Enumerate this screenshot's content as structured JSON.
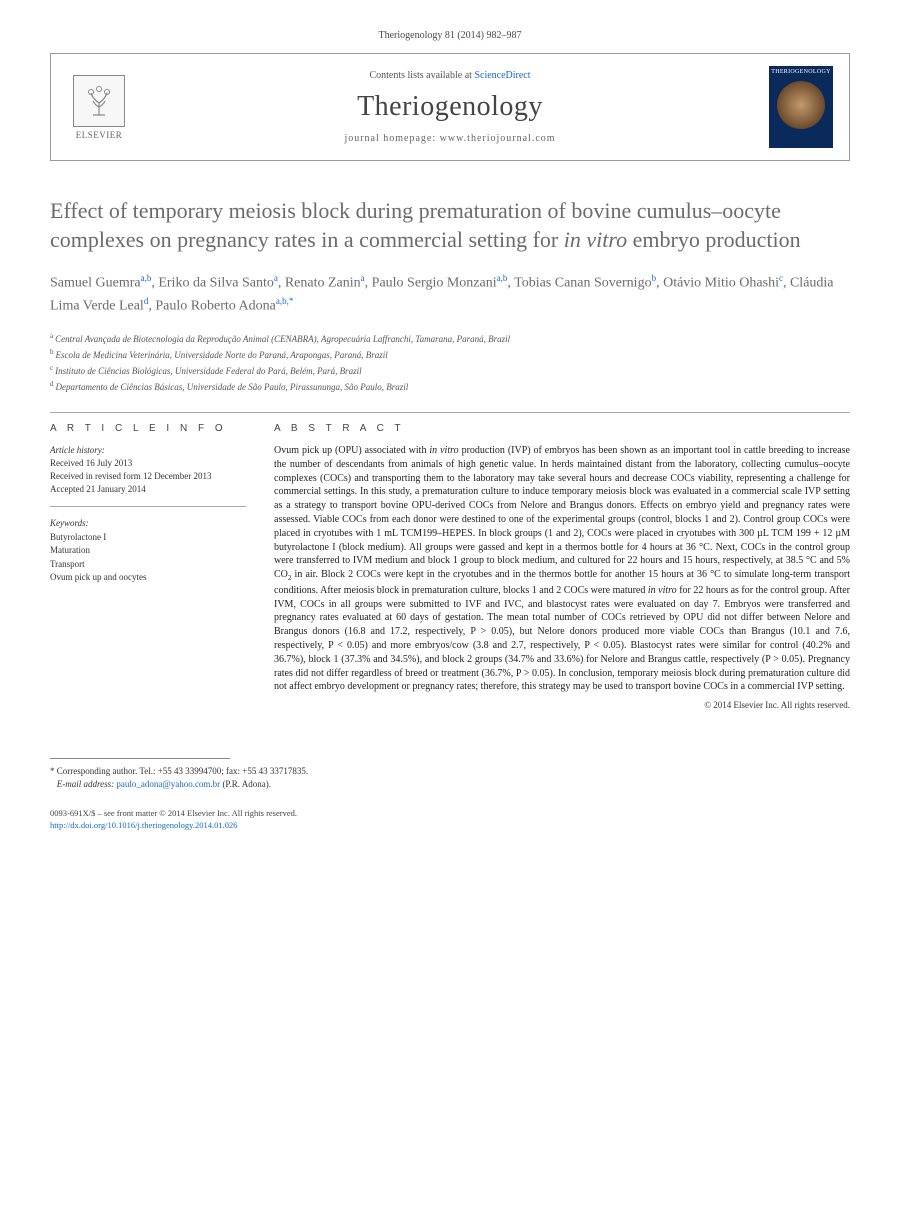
{
  "citation": "Theriogenology 81 (2014) 982–987",
  "masthead": {
    "publisher_word": "ELSEVIER",
    "contents_prefix": "Contents lists available at ",
    "contents_link": "ScienceDirect",
    "journal_name": "Theriogenology",
    "homepage_prefix": "journal homepage: ",
    "homepage_url": "www.theriojournal.com",
    "cover_title": "THERIOGENOLOGY"
  },
  "article": {
    "title_html": "Effect of temporary meiosis block during prematuration of bovine cumulus–oocyte complexes on pregnancy rates in a commercial setting for <em>in vitro</em> embryo production",
    "authors_html": "Samuel Guemra<sup>a,b</sup><span class='sep'>, </span>Eriko da Silva Santo<sup>a</sup><span class='sep'>, </span>Renato Zanin<sup>a</sup><span class='sep'>, </span>Paulo Sergio Monzani<sup>a,b</sup><span class='sep'>, </span>Tobias Canan Sovernigo<sup>b</sup><span class='sep'>, </span>Otávio Mitio Ohashi<sup>c</sup><span class='sep'>, </span>Cláudia Lima Verde Leal<sup>d</sup><span class='sep'>, </span>Paulo Roberto Adona<sup>a,b,*</sup>"
  },
  "affiliations": {
    "a": "Central Avançada de Biotecnologia da Reprodução Animal (CENABRA), Agropecuária Laffranchi, Tamarana, Paraná, Brazil",
    "b": "Escola de Medicina Veterinária, Universidade Norte do Paraná, Arapongas, Paraná, Brazil",
    "c": "Instituto de Ciências Biológicas, Universidade Federal do Pará, Belém, Pará, Brazil",
    "d": "Departamento de Ciências Básicas, Universidade de São Paulo, Pirassununga, São Paulo, Brazil"
  },
  "artinfo": {
    "heading": "A R T I C L E   I N F O",
    "history_label": "Article history:",
    "received": "Received 16 July 2013",
    "revised": "Received in revised form 12 December 2013",
    "accepted": "Accepted 21 January 2014",
    "keywords_label": "Keywords:",
    "keywords": [
      "Butyrolactone I",
      "Maturation",
      "Transport",
      "Ovum pick up and oocytes"
    ]
  },
  "abstract": {
    "heading": "A B S T R A C T",
    "body_html": "Ovum pick up (OPU) associated with <em>in vitro</em> production (IVP) of embryos has been shown as an important tool in cattle breeding to increase the number of descendants from animals of high genetic value. In herds maintained distant from the laboratory, collecting cumulus–oocyte complexes (COCs) and transporting them to the laboratory may take several hours and decrease COCs viability, representing a challenge for commercial settings. In this study, a prematuration culture to induce temporary meiosis block was evaluated in a commercial scale IVP setting as a strategy to transport bovine OPU-derived COCs from Nelore and Brangus donors. Effects on embryo yield and pregnancy rates were assessed. Viable COCs from each donor were destined to one of the experimental groups (control, blocks 1 and 2). Control group COCs were placed in cryotubes with 1 mL TCM199–HEPES. In block groups (1 and 2), COCs were placed in cryotubes with 300 µL TCM 199 + 12 µM butyrolactone I (block medium). All groups were gassed and kept in a thermos bottle for 4 hours at 36 °C. Next, COCs in the control group were transferred to IVM medium and block 1 group to block medium, and cultured for 22 hours and 15 hours, respectively, at 38.5 °C and 5% CO<sub>2</sub> in air. Block 2 COCs were kept in the cryotubes and in the thermos bottle for another 15 hours at 36 °C to simulate long-term transport conditions. After meiosis block in prematuration culture, blocks 1 and 2 COCs were matured <em>in vitro</em> for 22 hours as for the control group. After IVM, COCs in all groups were submitted to IVF and IVC, and blastocyst rates were evaluated on day 7. Embryos were transferred and pregnancy rates evaluated at 60 days of gestation. The mean total number of COCs retrieved by OPU did not differ between Nelore and Brangus donors (16.8 and 17.2, respectively, P > 0.05), but Nelore donors produced more viable COCs than Brangus (10.1 and 7.6, respectively, P < 0.05) and more embryos/cow (3.8 and 2.7, respectively, P < 0.05). Blastocyst rates were similar for control (40.2% and 36.7%), block 1 (37.3% and 34.5%), and block 2 groups (34.7% and 33.6%) for Nelore and Brangus cattle, respectively (P > 0.05). Pregnancy rates did not differ regardless of breed or treatment (36.7%, P > 0.05). In conclusion, temporary meiosis block during prematuration culture did not affect embryo development or pregnancy rates; therefore, this strategy may be used to transport bovine COCs in a commercial IVP setting.",
    "copyright": "© 2014 Elsevier Inc. All rights reserved."
  },
  "corresponding": {
    "line1": "* Corresponding author. Tel.: +55 43 33994700; fax: +55 43 33717835.",
    "email_label": "E-mail address:",
    "email": "paulo_adona@yahoo.com.br",
    "email_suffix": "(P.R. Adona)."
  },
  "footer": {
    "issn_line": "0093-691X/$ – see front matter © 2014 Elsevier Inc. All rights reserved.",
    "doi": "http://dx.doi.org/10.1016/j.theriogenology.2014.01.026"
  }
}
